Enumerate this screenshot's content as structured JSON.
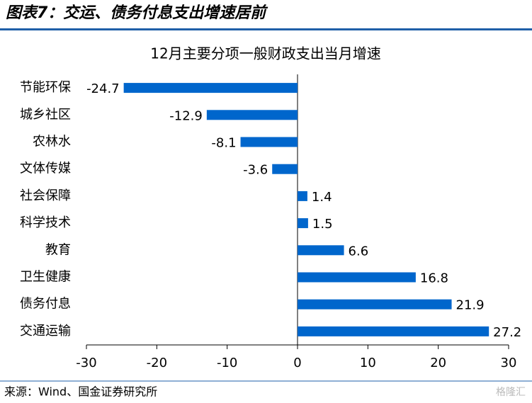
{
  "header": {
    "title": "图表7：交运、债务付息支出增速居前"
  },
  "chart_data": {
    "type": "bar",
    "orientation": "horizontal",
    "title": "12月主要分项一般财政支出当月增速",
    "categories": [
      "节能环保",
      "城乡社区",
      "农林水",
      "文体传媒",
      "社会保障",
      "科学技术",
      "教育",
      "卫生健康",
      "债务付息",
      "交通运输"
    ],
    "values": [
      -24.7,
      -12.9,
      -8.1,
      -3.6,
      1.4,
      1.5,
      6.6,
      16.8,
      21.9,
      27.2
    ],
    "color": "#0066cc",
    "xlim": [
      -30,
      30
    ],
    "xticks": [
      -30,
      -20,
      -10,
      0,
      10,
      20,
      30
    ]
  },
  "footer": {
    "source": "来源：Wind、国金证券研究所",
    "watermark": "格隆汇"
  }
}
